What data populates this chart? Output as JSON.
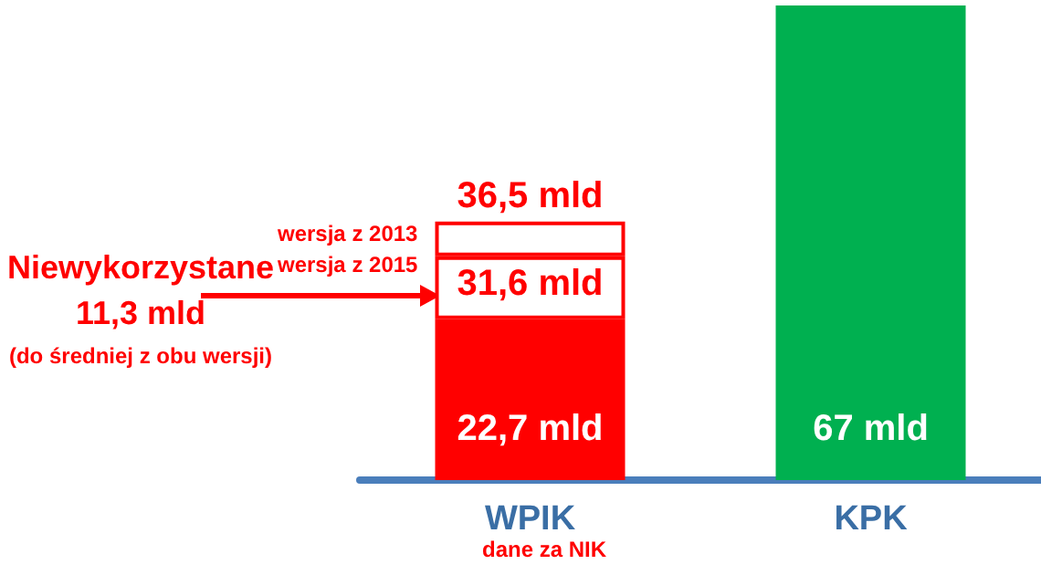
{
  "chart_data": {
    "type": "bar",
    "stacked": true,
    "categories": [
      "WPIK",
      "KPK"
    ],
    "series": [
      {
        "colors": [
          "#ff0000",
          "#00b050"
        ],
        "values": [
          22.7,
          67
        ],
        "value_labels": [
          "22,7 mld",
          "67 mld"
        ]
      },
      {
        "color": "#ffffff",
        "values": [
          8.9,
          null
        ]
      },
      {
        "color": "#ffffff",
        "values": [
          4.9,
          null
        ]
      }
    ],
    "annotations": [
      "wersja z 2013",
      "wersja z 2015",
      "Niewykorzystane\n11,3 mld",
      "(do średniej z obu wersji)",
      "dane za NIK",
      {
        "text": "31,6 mld",
        "x": "WPIK",
        "y": 31.6
      },
      {
        "text": "36,5 mld",
        "x": "WPIK",
        "y": 36.5
      }
    ]
  }
}
